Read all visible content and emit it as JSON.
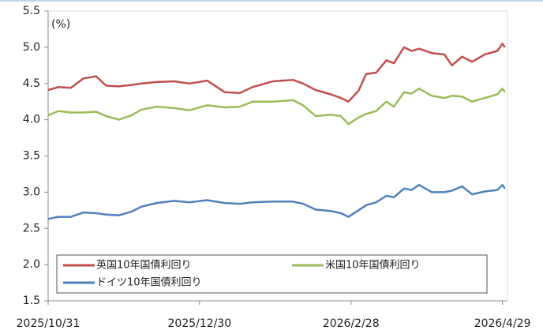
{
  "chart_data": {
    "type": "line",
    "y_label": "(%)",
    "x": [
      "2025/10/31",
      "2025/11/4",
      "2025/11/9",
      "2025/11/14",
      "2025/11/19",
      "2025/11/23",
      "2025/11/28",
      "2025/12/3",
      "2025/12/7",
      "2025/12/13",
      "2025/12/20",
      "2025/12/26",
      "2026/1/2",
      "2026/1/9",
      "2026/1/15",
      "2026/1/20",
      "2026/1/28",
      "2026/2/5",
      "2026/2/9",
      "2026/2/14",
      "2026/2/20",
      "2026/2/24",
      "2026/2/27",
      "2026/3/3",
      "2026/3/6",
      "2026/3/10",
      "2026/3/14",
      "2026/3/17",
      "2026/3/21",
      "2026/3/24",
      "2026/3/27",
      "2026/4/1",
      "2026/4/6",
      "2026/4/9",
      "2026/4/13",
      "2026/4/17",
      "2026/4/22",
      "2026/4/27",
      "2026/4/29",
      "2026/4/30"
    ],
    "series": [
      {
        "name": "英国10年国債利回り",
        "color": "#c0504d",
        "values": [
          4.41,
          4.45,
          4.44,
          4.57,
          4.6,
          4.47,
          4.46,
          4.48,
          4.5,
          4.52,
          4.53,
          4.5,
          4.54,
          4.38,
          4.37,
          4.45,
          4.53,
          4.55,
          4.5,
          4.41,
          4.35,
          4.3,
          4.25,
          4.4,
          4.63,
          4.65,
          4.82,
          4.78,
          5.0,
          4.95,
          4.98,
          4.92,
          4.9,
          4.75,
          4.87,
          4.8,
          4.9,
          4.95,
          5.05,
          5.0
        ]
      },
      {
        "name": "米国10年国債利回り",
        "color": "#9bbb59",
        "values": [
          4.06,
          4.12,
          4.1,
          4.1,
          4.11,
          4.05,
          4.0,
          4.06,
          4.14,
          4.18,
          4.16,
          4.13,
          4.2,
          4.17,
          4.18,
          4.25,
          4.25,
          4.27,
          4.2,
          4.05,
          4.07,
          4.05,
          3.94,
          4.03,
          4.08,
          4.12,
          4.25,
          4.18,
          4.38,
          4.36,
          4.43,
          4.33,
          4.3,
          4.33,
          4.32,
          4.25,
          4.3,
          4.35,
          4.43,
          4.38
        ]
      },
      {
        "name": "ドイツ10年国債利回り",
        "color": "#4f81bd",
        "values": [
          2.63,
          2.66,
          2.66,
          2.72,
          2.71,
          2.69,
          2.68,
          2.73,
          2.8,
          2.85,
          2.88,
          2.86,
          2.89,
          2.85,
          2.84,
          2.86,
          2.87,
          2.87,
          2.84,
          2.76,
          2.74,
          2.71,
          2.66,
          2.75,
          2.82,
          2.86,
          2.95,
          2.93,
          3.05,
          3.03,
          3.1,
          3.0,
          3.0,
          3.02,
          3.08,
          2.97,
          3.01,
          3.03,
          3.1,
          3.05
        ]
      }
    ],
    "xlim": [
      "2025/10/31",
      "2026/5/1"
    ],
    "xticks": [
      "2025/10/31",
      "2025/12/30",
      "2026/2/28",
      "2026/4/29"
    ],
    "ylim": [
      1.5,
      5.5
    ],
    "yticks": [
      1.5,
      {
        "value": 2,
        "label": "2.0"
      },
      2.5,
      {
        "value": 3,
        "label": "3.0"
      },
      3.5,
      {
        "value": 4,
        "label": "4.0"
      },
      4.5,
      {
        "value": 5,
        "label": "5.0"
      },
      5.5
    ],
    "legend": "bottom"
  }
}
